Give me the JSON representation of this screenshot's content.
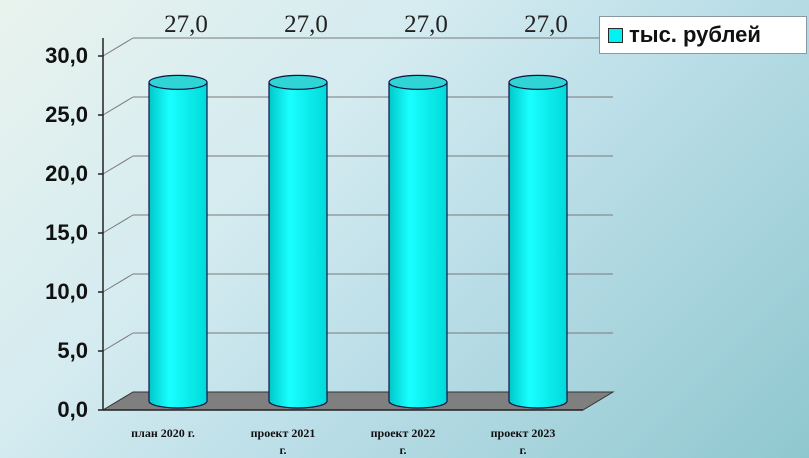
{
  "chart_data": {
    "type": "bar",
    "categories": [
      "план 2020 г.",
      "проект 2021 г.",
      "проект 2022 г.",
      "проект 2023 г."
    ],
    "series": [
      {
        "name": "тыс. рублей",
        "values": [
          27.0,
          27.0,
          27.0,
          27.0
        ]
      }
    ],
    "data_labels": [
      "27,0",
      "27,0",
      "27,0",
      "27,0"
    ],
    "y_ticks": [
      "0,0",
      "5,0",
      "10,0",
      "15,0",
      "20,0",
      "25,0",
      "30,0"
    ],
    "ylim": [
      0,
      30
    ],
    "grid": true,
    "legend_position": "top-right",
    "bar_shape": "cylinder",
    "colors": {
      "bar": "#00f2f2",
      "bar_top": "#2fd4d4",
      "floor": "#7f7f7f",
      "gridline": "#7a7a7a"
    }
  }
}
